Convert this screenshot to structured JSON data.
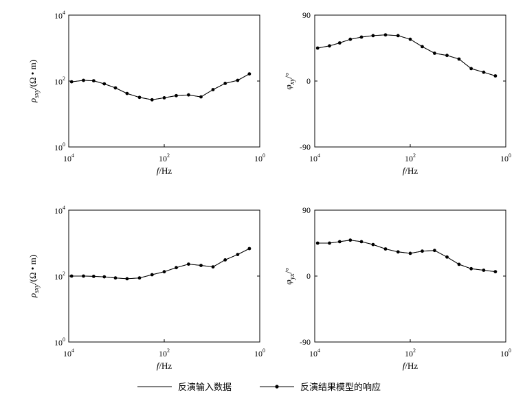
{
  "chart_data": [
    {
      "type": "line",
      "panel": "top-left",
      "x_scale": "log",
      "x_reversed": true,
      "xlim": [
        10000,
        1
      ],
      "x_ticks": [
        {
          "base": "10",
          "exp": "4"
        },
        {
          "base": "10",
          "exp": "2"
        },
        {
          "base": "10",
          "exp": "0"
        }
      ],
      "y_scale": "log",
      "ylim": [
        1,
        10000
      ],
      "y_ticks": [
        {
          "base": "10",
          "exp": "4"
        },
        {
          "base": "10",
          "exp": "2"
        },
        {
          "base": "10",
          "exp": "0"
        }
      ],
      "xlabel": {
        "var": "f",
        "unit": "/Hz"
      },
      "ylabel": {
        "sym": "ρ",
        "sub": "sxy",
        "unit": "/(Ω • m)"
      },
      "x": [
        8700,
        4900,
        3000,
        1800,
        1050,
        600,
        330,
        180,
        100,
        56,
        31,
        17,
        9.5,
        5.3,
        2.9,
        1.65
      ],
      "series": [
        {
          "style": "line",
          "values": [
            95,
            105,
            102,
            82,
            62,
            42,
            32,
            27,
            31,
            36,
            38,
            33,
            55,
            85,
            105,
            165
          ]
        },
        {
          "style": "line-dot",
          "values": [
            95,
            105,
            102,
            82,
            62,
            42,
            32,
            27,
            31,
            36,
            38,
            33,
            55,
            85,
            105,
            165
          ]
        }
      ]
    },
    {
      "type": "line",
      "panel": "top-right",
      "x_scale": "log",
      "x_reversed": true,
      "xlim": [
        10000,
        1
      ],
      "x_ticks": [
        {
          "base": "10",
          "exp": "4"
        },
        {
          "base": "10",
          "exp": "2"
        },
        {
          "base": "10",
          "exp": "0"
        }
      ],
      "y_scale": "linear",
      "ylim": [
        -90,
        90
      ],
      "y_ticks": [
        {
          "v": 90,
          "label": "90"
        },
        {
          "v": 0,
          "label": "0"
        },
        {
          "v": -90,
          "label": "-90"
        }
      ],
      "xlabel": {
        "var": "f",
        "unit": "/Hz"
      },
      "ylabel": {
        "sym": "φ",
        "sub": "xy",
        "unit": "/°"
      },
      "x": [
        8700,
        4900,
        3000,
        1800,
        1050,
        600,
        330,
        180,
        100,
        56,
        31,
        17,
        9.5,
        5.3,
        2.9,
        1.65
      ],
      "series": [
        {
          "style": "line",
          "values": [
            45,
            48,
            52,
            57,
            60,
            62,
            63,
            62,
            57,
            47,
            38,
            35,
            30,
            17,
            12,
            7
          ]
        },
        {
          "style": "line-dot",
          "values": [
            45,
            48,
            52,
            57,
            60,
            62,
            63,
            62,
            57,
            47,
            38,
            35,
            30,
            17,
            12,
            7
          ]
        }
      ]
    },
    {
      "type": "line",
      "panel": "bottom-left",
      "x_scale": "log",
      "x_reversed": true,
      "xlim": [
        10000,
        1
      ],
      "x_ticks": [
        {
          "base": "10",
          "exp": "4"
        },
        {
          "base": "10",
          "exp": "2"
        },
        {
          "base": "10",
          "exp": "0"
        }
      ],
      "y_scale": "log",
      "ylim": [
        1,
        10000
      ],
      "y_ticks": [
        {
          "base": "10",
          "exp": "4"
        },
        {
          "base": "10",
          "exp": "2"
        },
        {
          "base": "10",
          "exp": "0"
        }
      ],
      "xlabel": {
        "var": "f",
        "unit": "/Hz"
      },
      "ylabel": {
        "sym": "ρ",
        "sub": "sxy",
        "unit": "/(Ω • m)"
      },
      "x": [
        8700,
        4900,
        3000,
        1800,
        1050,
        600,
        330,
        180,
        100,
        56,
        31,
        17,
        9.5,
        5.3,
        2.9,
        1.65
      ],
      "series": [
        {
          "style": "line",
          "values": [
            100,
            100,
            98,
            95,
            88,
            83,
            88,
            110,
            135,
            180,
            230,
            210,
            190,
            310,
            450,
            680
          ]
        },
        {
          "style": "line-dot",
          "values": [
            100,
            100,
            98,
            95,
            88,
            83,
            88,
            110,
            135,
            180,
            230,
            210,
            190,
            310,
            450,
            680
          ]
        }
      ]
    },
    {
      "type": "line",
      "panel": "bottom-right",
      "x_scale": "log",
      "x_reversed": true,
      "xlim": [
        10000,
        1
      ],
      "x_ticks": [
        {
          "base": "10",
          "exp": "4"
        },
        {
          "base": "10",
          "exp": "2"
        },
        {
          "base": "10",
          "exp": "0"
        }
      ],
      "y_scale": "linear",
      "ylim": [
        -90,
        90
      ],
      "y_ticks": [
        {
          "v": 90,
          "label": "90"
        },
        {
          "v": 0,
          "label": "0"
        },
        {
          "v": -90,
          "label": "-90"
        }
      ],
      "xlabel": {
        "var": "f",
        "unit": "/Hz"
      },
      "ylabel": {
        "sym": "φ",
        "sub": "yx",
        "unit": "/°"
      },
      "x": [
        8700,
        4900,
        3000,
        1800,
        1050,
        600,
        330,
        180,
        100,
        56,
        31,
        17,
        9.5,
        5.3,
        2.9,
        1.65
      ],
      "series": [
        {
          "style": "line",
          "values": [
            45,
            45,
            47,
            49,
            47,
            43,
            37,
            33,
            31,
            34,
            35,
            26,
            16,
            10,
            8,
            6
          ]
        },
        {
          "style": "line-dot",
          "values": [
            45,
            45,
            47,
            49,
            47,
            43,
            37,
            33,
            31,
            34,
            35,
            26,
            16,
            10,
            8,
            6
          ]
        }
      ]
    }
  ],
  "legend": {
    "position": "bottom-center",
    "items": [
      {
        "label": "反演输入数据",
        "style": "line"
      },
      {
        "label": "反演结果模型的响应",
        "style": "line-dot"
      }
    ]
  }
}
